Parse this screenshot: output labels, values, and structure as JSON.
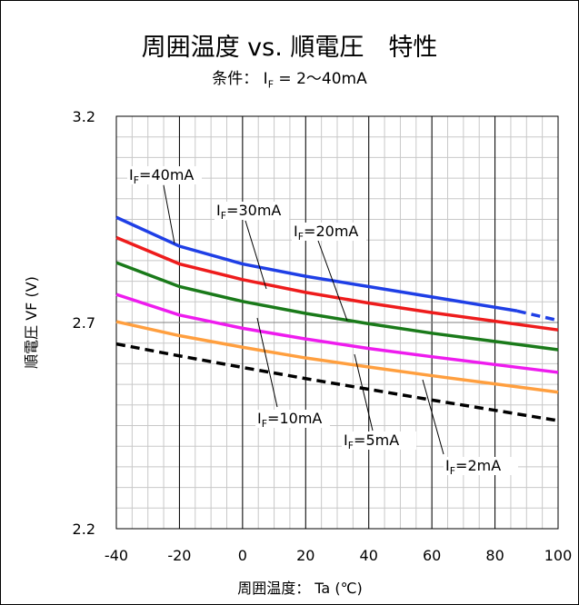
{
  "chart_data": {
    "type": "line",
    "title": "周囲温度 vs. 順電圧　特性",
    "subtitle": "条件：  I_F = 2～40mA",
    "xlabel": "周囲温度：  Ta (℃)",
    "ylabel": "順電圧  VF (V)",
    "xlim": [
      -40,
      100
    ],
    "ylim": [
      2.2,
      3.2
    ],
    "x_ticks": [
      -40,
      -20,
      0,
      20,
      40,
      60,
      80,
      100
    ],
    "x_tick_labels": [
      "-40",
      "-20",
      "0",
      "20",
      "40",
      "60",
      "80",
      "100"
    ],
    "y_ticks": [
      2.2,
      2.7,
      3.2
    ],
    "y_tick_labels": [
      "2.2",
      "2.7",
      "3.2"
    ],
    "grid": true,
    "series": [
      {
        "name": "IF=40mA",
        "color": "#1f3fe6",
        "dashed_from": 87,
        "x": [
          -40,
          -20,
          0,
          20,
          40,
          60,
          87,
          100
        ],
        "y": [
          2.955,
          2.885,
          2.842,
          2.812,
          2.787,
          2.762,
          2.728,
          2.705
        ]
      },
      {
        "name": "IF=30mA",
        "color": "#ee1c1c",
        "x": [
          -40,
          -20,
          0,
          20,
          40,
          60,
          80,
          100
        ],
        "y": [
          2.906,
          2.842,
          2.804,
          2.773,
          2.747,
          2.724,
          2.703,
          2.682
        ]
      },
      {
        "name": "IF=20mA",
        "color": "#1a7a1a",
        "x": [
          -40,
          -20,
          0,
          20,
          40,
          60,
          80,
          100
        ],
        "y": [
          2.845,
          2.787,
          2.751,
          2.722,
          2.697,
          2.674,
          2.654,
          2.634
        ]
      },
      {
        "name": "IF=10mA",
        "color": "#ee1cee",
        "x": [
          -40,
          -20,
          0,
          20,
          40,
          60,
          80,
          100
        ],
        "y": [
          2.768,
          2.718,
          2.686,
          2.66,
          2.637,
          2.617,
          2.598,
          2.579
        ]
      },
      {
        "name": "IF=5mA",
        "color": "#ff9f3f",
        "x": [
          -40,
          -20,
          0,
          20,
          40,
          60,
          80,
          100
        ],
        "y": [
          2.702,
          2.668,
          2.64,
          2.614,
          2.592,
          2.571,
          2.551,
          2.531
        ]
      },
      {
        "name": "IF=2mA",
        "color": "#000000",
        "dashed": true,
        "x": [
          -40,
          -20,
          0,
          20,
          40,
          60,
          80,
          100
        ],
        "y": [
          2.648,
          2.619,
          2.591,
          2.564,
          2.538,
          2.512,
          2.487,
          2.462
        ]
      }
    ],
    "annotations": [
      {
        "label_main": "I",
        "label_sub": "F",
        "label_rest": "=40mA",
        "series": 0
      },
      {
        "label_main": "I",
        "label_sub": "F",
        "label_rest": "=30mA",
        "series": 1
      },
      {
        "label_main": "I",
        "label_sub": "F",
        "label_rest": "=20mA",
        "series": 2
      },
      {
        "label_main": "I",
        "label_sub": "F",
        "label_rest": "=10mA",
        "series": 3
      },
      {
        "label_main": "I",
        "label_sub": "F",
        "label_rest": "=5mA",
        "series": 4
      },
      {
        "label_main": "I",
        "label_sub": "F",
        "label_rest": "=2mA",
        "series": 5
      }
    ]
  }
}
